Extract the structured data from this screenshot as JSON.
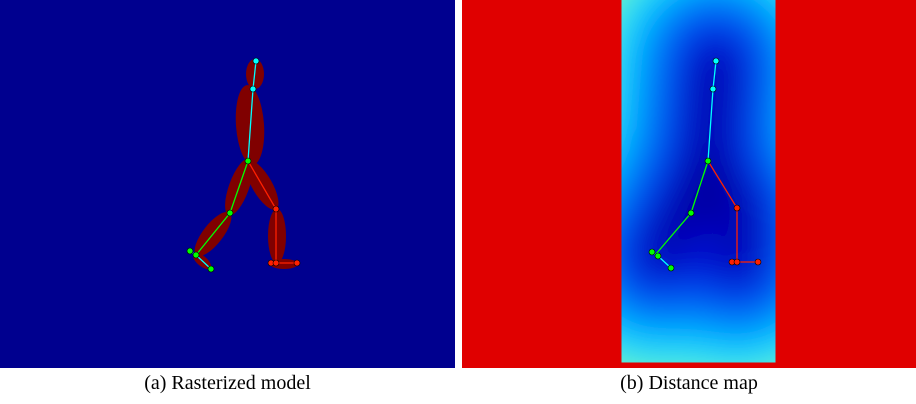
{
  "figure": {
    "subfigures": [
      {
        "caption": "(a) Rasterized model"
      },
      {
        "caption": "(b) Distance map"
      }
    ]
  }
}
